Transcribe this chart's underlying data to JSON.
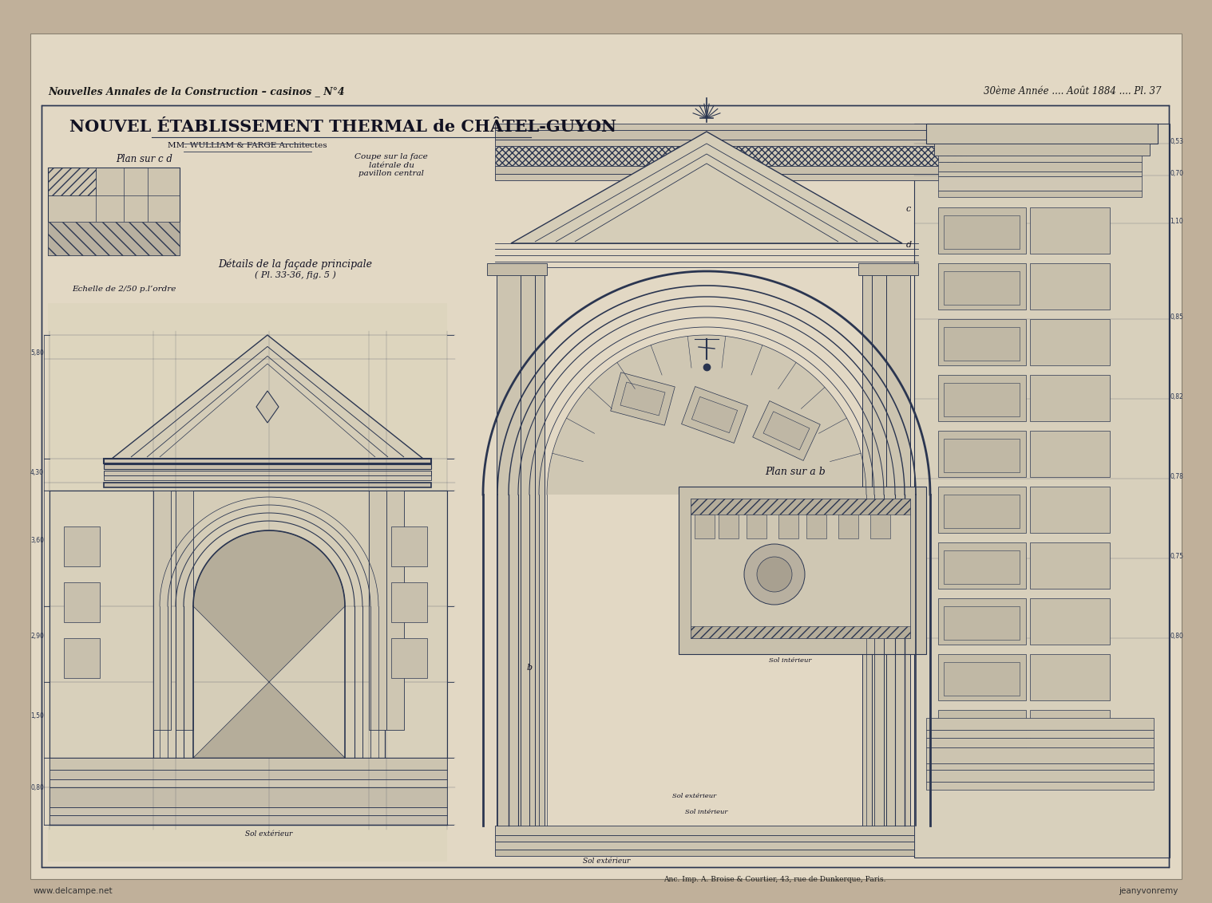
{
  "bg_color_outer": "#b8aa96",
  "paper_color": "#e2d8c4",
  "paper_inner": "#ddd3be",
  "line_color": "#2a3550",
  "line_color_light": "#4a5570",
  "title_top_left": "Nouvelles Annales de la Construction – casinos _ N°4",
  "title_top_right": "30ème Année .... Août 1884 .... Pl. 37",
  "main_title": "NOUVEL ÉTABLISSEMENT THERMAL de CHÂTEL-GUYON",
  "subtitle1": "MM. WULLIAM & FARGE Architectes",
  "label_plan_cd": "Plan sur c d",
  "label_coupe": "Coupe sur la face\nlatérale du\npavillon central",
  "label_details": "Détails de la façade principale",
  "label_details2": "( Pl. 33-36, fig. 5 )",
  "label_echelle": "Echelle de 2/50 p.l’ordre",
  "label_plan_ab": "Plan sur a b",
  "label_sol_ext1": "Sol extérieur",
  "label_sol_ext2": "Sol extérieur",
  "label_sol_int": "Sol intérieur",
  "label_publisher": "Anc. Imp. A. Broise & Courtier, 43, rue de Dunkerque, Paris.",
  "watermark_left": "www.delcampe.net",
  "watermark_right": "jeanyvonremy"
}
